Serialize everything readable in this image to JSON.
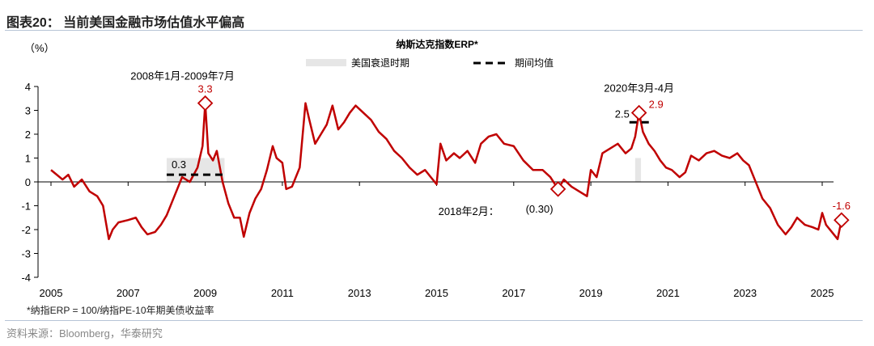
{
  "header": {
    "title": "图表20： 当前美国金融市场估值水平偏高"
  },
  "footer": {
    "note": "*纳指ERP = 100/纳指PE-10年期美债收益率",
    "source": "资料来源：Bloomberg，华泰研究"
  },
  "chart_data": {
    "type": "line",
    "title": "纳斯达克指数ERP*",
    "ylabel": "（%）",
    "xlabel": "",
    "ylim": [
      -4,
      4
    ],
    "xlim": [
      2005,
      2025.6
    ],
    "yticks": [
      "4",
      "3",
      "2",
      "1",
      "0",
      "-1",
      "-2",
      "-3",
      "-4"
    ],
    "xticks": [
      "2005",
      "2007",
      "2009",
      "2011",
      "2013",
      "2015",
      "2017",
      "2019",
      "2021",
      "2023",
      "2025"
    ],
    "legend": {
      "placement": "top-center",
      "items": [
        "美国衰退时期",
        "期间均值"
      ]
    },
    "colors": {
      "line": "#c00000",
      "shade": "#e6e6e6",
      "mean": "#000000",
      "annotation": "#c00000"
    },
    "recessions": [
      [
        2008.0,
        2009.5
      ],
      [
        2020.15,
        2020.3
      ]
    ],
    "means": [
      {
        "from": 2008.0,
        "to": 2009.55,
        "value": 0.3,
        "label": "0.3"
      },
      {
        "from": 2020.0,
        "to": 2020.55,
        "value": 2.5,
        "label": "2.5"
      }
    ],
    "annotations": [
      {
        "x": 2009.0,
        "y": 3.3,
        "label": "3.3",
        "period": "2008年1月-2009年7月"
      },
      {
        "x": 2018.15,
        "y": -0.3,
        "label": "(0.30)",
        "period": "2018年2月："
      },
      {
        "x": 2020.25,
        "y": 2.9,
        "label": "2.9",
        "period": "2020年3月-4月"
      },
      {
        "x": 2025.5,
        "y": -1.6,
        "label": "-1.6"
      }
    ],
    "series": [
      {
        "x": [
          2005.0,
          2005.15,
          2005.3,
          2005.45,
          2005.6,
          2005.8,
          2006.0,
          2006.2,
          2006.35,
          2006.5,
          2006.6,
          2006.75,
          2007.0,
          2007.2,
          2007.35,
          2007.5,
          2007.7,
          2007.85,
          2008.0,
          2008.2,
          2008.4,
          2008.6,
          2008.8,
          2008.93,
          2009.0,
          2009.08,
          2009.2,
          2009.3,
          2009.45,
          2009.6,
          2009.75,
          2009.9,
          2010.0,
          2010.15,
          2010.3,
          2010.45,
          2010.6,
          2010.75,
          2010.85,
          2011.0,
          2011.1,
          2011.25,
          2011.45,
          2011.6,
          2011.7,
          2011.85,
          2012.0,
          2012.15,
          2012.3,
          2012.45,
          2012.6,
          2012.75,
          2012.9,
          2013.1,
          2013.3,
          2013.5,
          2013.7,
          2013.9,
          2014.1,
          2014.3,
          2014.5,
          2014.7,
          2014.85,
          2015.0,
          2015.1,
          2015.25,
          2015.45,
          2015.6,
          2015.8,
          2016.0,
          2016.15,
          2016.35,
          2016.55,
          2016.75,
          2017.0,
          2017.25,
          2017.5,
          2017.75,
          2017.95,
          2018.15,
          2018.3,
          2018.5,
          2018.7,
          2018.9,
          2019.0,
          2019.15,
          2019.3,
          2019.5,
          2019.7,
          2019.9,
          2020.05,
          2020.15,
          2020.25,
          2020.35,
          2020.5,
          2020.65,
          2020.8,
          2020.95,
          2021.1,
          2021.3,
          2021.45,
          2021.6,
          2021.8,
          2022.0,
          2022.2,
          2022.4,
          2022.6,
          2022.8,
          2022.95,
          2023.1,
          2023.25,
          2023.45,
          2023.65,
          2023.85,
          2024.05,
          2024.2,
          2024.35,
          2024.55,
          2024.75,
          2024.9,
          2025.0,
          2025.1,
          2025.25,
          2025.4,
          2025.5
        ],
        "y": [
          0.5,
          0.3,
          0.1,
          0.3,
          -0.2,
          0.1,
          -0.4,
          -0.6,
          -1.0,
          -2.4,
          -2.0,
          -1.7,
          -1.6,
          -1.5,
          -1.9,
          -2.2,
          -2.1,
          -1.8,
          -1.4,
          -0.6,
          0.2,
          0.0,
          0.6,
          1.5,
          3.3,
          1.2,
          0.9,
          1.3,
          0.0,
          -0.9,
          -1.5,
          -1.5,
          -2.3,
          -1.3,
          -0.7,
          -0.3,
          0.5,
          1.5,
          1.0,
          0.8,
          -0.3,
          -0.2,
          0.6,
          3.3,
          2.6,
          1.6,
          2.0,
          2.4,
          3.2,
          2.2,
          2.5,
          2.9,
          3.2,
          2.9,
          2.6,
          2.1,
          1.8,
          1.3,
          1.0,
          0.6,
          0.3,
          0.5,
          0.2,
          -0.1,
          1.6,
          0.9,
          1.2,
          1.0,
          1.3,
          0.8,
          1.6,
          1.9,
          2.0,
          1.6,
          1.5,
          0.9,
          0.5,
          0.5,
          0.2,
          -0.3,
          0.1,
          -0.2,
          -0.4,
          -0.6,
          0.5,
          0.2,
          1.2,
          1.4,
          1.6,
          1.2,
          1.4,
          1.9,
          2.9,
          2.1,
          1.6,
          1.3,
          0.9,
          0.6,
          0.5,
          0.2,
          0.4,
          1.1,
          0.9,
          1.2,
          1.3,
          1.1,
          1.0,
          1.2,
          0.9,
          0.7,
          0.1,
          -0.7,
          -1.1,
          -1.8,
          -2.2,
          -1.9,
          -1.5,
          -1.8,
          -1.9,
          -2.0,
          -1.3,
          -1.8,
          -2.1,
          -2.4,
          -1.6
        ]
      }
    ]
  }
}
